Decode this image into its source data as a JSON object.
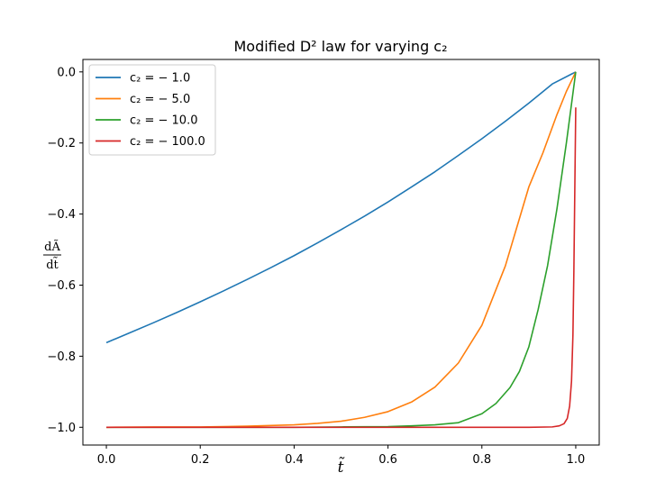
{
  "chart_data": {
    "type": "line",
    "title": "Modified D² law for varying c₂",
    "xlabel": "t̃",
    "ylabel_num": "dÃ",
    "ylabel_den": "dt̃",
    "xlim": [
      -0.05,
      1.05
    ],
    "ylim": [
      -1.05,
      0.035
    ],
    "xticks": [
      0.0,
      0.2,
      0.4,
      0.6,
      0.8,
      1.0
    ],
    "xtick_labels": [
      "0.0",
      "0.2",
      "0.4",
      "0.6",
      "0.8",
      "1.0"
    ],
    "yticks": [
      0.0,
      -0.2,
      -0.4,
      -0.6,
      -0.8,
      -1.0
    ],
    "ytick_labels": [
      "0.0",
      "−0.2",
      "−0.4",
      "−0.6",
      "−0.8",
      "−1.0"
    ],
    "grid": false,
    "legend_position": "top-left",
    "series": [
      {
        "name": "c₂ = − 1.0",
        "color": "#1f77b4",
        "x": [
          0.0,
          0.05,
          0.1,
          0.15,
          0.2,
          0.25,
          0.3,
          0.35,
          0.4,
          0.45,
          0.5,
          0.55,
          0.6,
          0.65,
          0.7,
          0.75,
          0.8,
          0.85,
          0.9,
          0.95,
          1.0
        ],
        "y": [
          -0.762,
          -0.734,
          -0.706,
          -0.677,
          -0.647,
          -0.616,
          -0.584,
          -0.551,
          -0.517,
          -0.481,
          -0.444,
          -0.406,
          -0.366,
          -0.324,
          -0.281,
          -0.235,
          -0.188,
          -0.139,
          -0.088,
          -0.034,
          0.0
        ]
      },
      {
        "name": "c₂ = − 5.0",
        "color": "#ff7f0e",
        "x": [
          0.0,
          0.1,
          0.2,
          0.3,
          0.4,
          0.45,
          0.5,
          0.55,
          0.6,
          0.65,
          0.7,
          0.75,
          0.8,
          0.85,
          0.9,
          0.93,
          0.96,
          0.98,
          1.0
        ],
        "y": [
          -1.0,
          -0.999,
          -0.999,
          -0.997,
          -0.993,
          -0.989,
          -0.983,
          -0.972,
          -0.956,
          -0.929,
          -0.887,
          -0.819,
          -0.713,
          -0.546,
          -0.324,
          -0.228,
          -0.12,
          -0.055,
          0.0
        ]
      },
      {
        "name": "c₂ = − 10.0",
        "color": "#2ca02c",
        "x": [
          0.0,
          0.2,
          0.4,
          0.5,
          0.6,
          0.65,
          0.7,
          0.75,
          0.8,
          0.83,
          0.86,
          0.88,
          0.9,
          0.92,
          0.94,
          0.96,
          0.98,
          0.99,
          1.0
        ],
        "y": [
          -1.0,
          -1.0,
          -1.0,
          -0.999,
          -0.998,
          -0.996,
          -0.993,
          -0.987,
          -0.962,
          -0.933,
          -0.888,
          -0.843,
          -0.774,
          -0.668,
          -0.545,
          -0.385,
          -0.2,
          -0.1,
          0.0
        ]
      },
      {
        "name": "c₂ = − 100.0",
        "color": "#d62728",
        "x": [
          0.0,
          0.5,
          0.9,
          0.95,
          0.965,
          0.975,
          0.982,
          0.987,
          0.991,
          0.994,
          0.996,
          0.998,
          1.0
        ],
        "y": [
          -1.0,
          -1.0,
          -1.0,
          -0.999,
          -0.996,
          -0.99,
          -0.975,
          -0.94,
          -0.87,
          -0.74,
          -0.56,
          -0.33,
          -0.1
        ]
      }
    ]
  }
}
